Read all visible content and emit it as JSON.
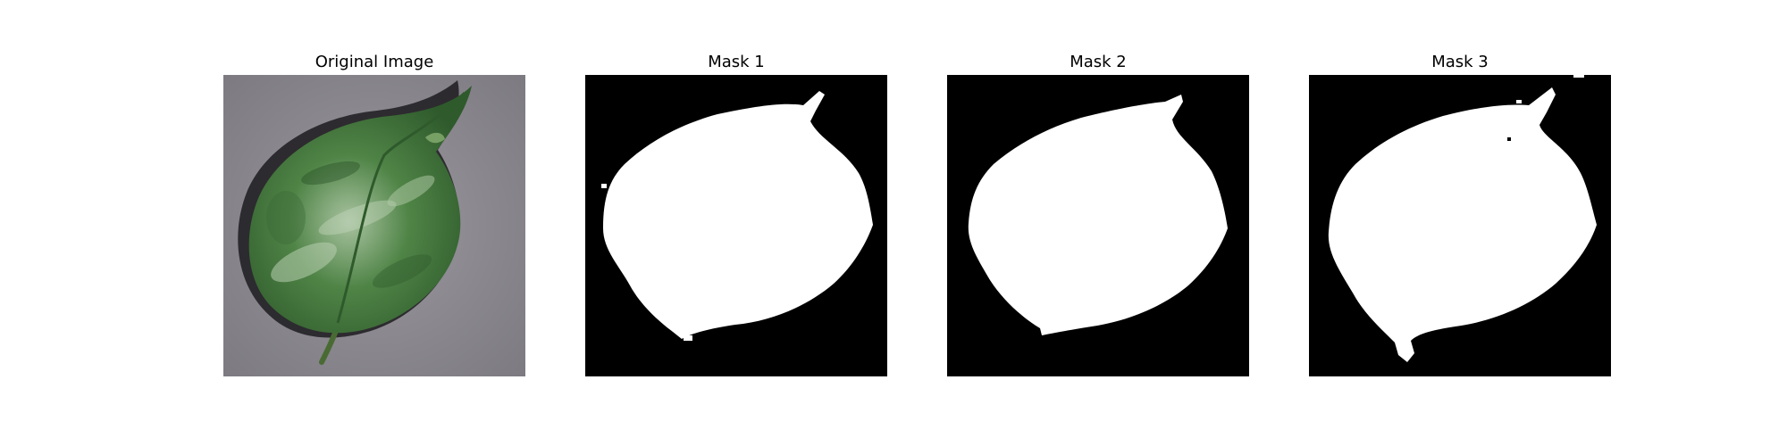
{
  "figure": {
    "panels": [
      {
        "title": "Original Image",
        "kind": "photo"
      },
      {
        "title": "Mask 1",
        "kind": "mask"
      },
      {
        "title": "Mask 2",
        "kind": "mask"
      },
      {
        "title": "Mask 3",
        "kind": "mask"
      }
    ]
  },
  "colors": {
    "background": "#ffffff",
    "mask_background": "#000000",
    "mask_foreground": "#ffffff",
    "photo_background": "#8f8c92",
    "leaf_dark": "#2f5a2c",
    "leaf_mid": "#4f8446",
    "leaf_light": "#a9c3a1",
    "stem": "#496b33",
    "shadow": "#1c1b1f"
  }
}
